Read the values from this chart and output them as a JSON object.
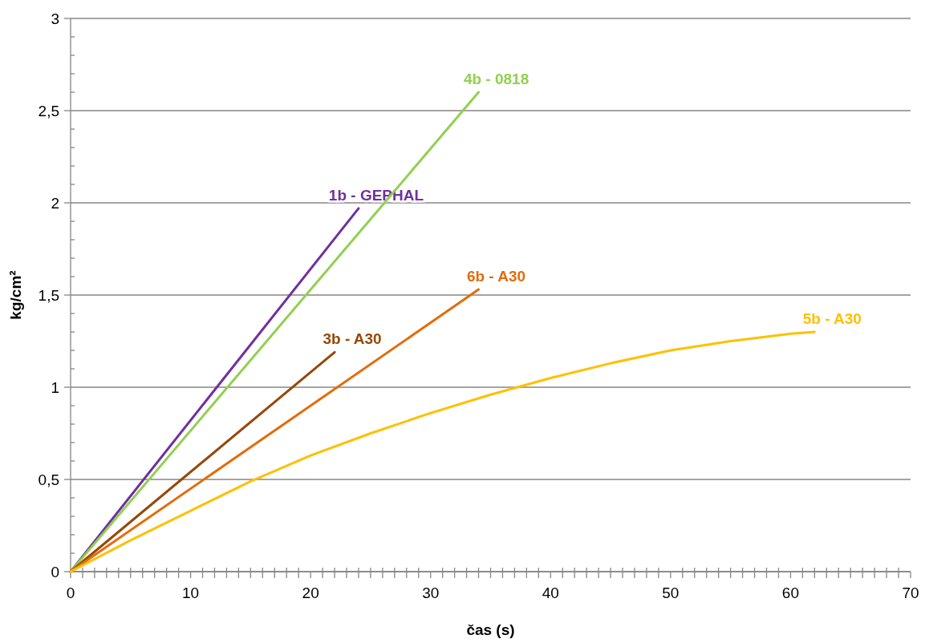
{
  "chart_data": {
    "type": "line",
    "xlabel": "čas (s)",
    "ylabel": "kg/cm²",
    "xlim": [
      0,
      70
    ],
    "ylim": [
      0,
      3
    ],
    "xticks": [
      0,
      {
        "value": 1,
        "label": null
      },
      {
        "value": 2,
        "label": null
      },
      {
        "value": 3,
        "label": null
      },
      {
        "value": 4,
        "label": null
      },
      {
        "value": 5,
        "label": null
      },
      {
        "value": 6,
        "label": null
      },
      {
        "value": 7,
        "label": null
      },
      {
        "value": 8,
        "label": null
      },
      {
        "value": 9,
        "label": null
      },
      10,
      {
        "value": 11,
        "label": null
      },
      {
        "value": 12,
        "label": null
      },
      {
        "value": 13,
        "label": null
      },
      {
        "value": 14,
        "label": null
      },
      {
        "value": 15,
        "label": null
      },
      {
        "value": 16,
        "label": null
      },
      {
        "value": 17,
        "label": null
      },
      {
        "value": 18,
        "label": null
      },
      {
        "value": 19,
        "label": null
      },
      20,
      {
        "value": 21,
        "label": null
      },
      {
        "value": 22,
        "label": null
      },
      {
        "value": 23,
        "label": null
      },
      {
        "value": 24,
        "label": null
      },
      {
        "value": 25,
        "label": null
      },
      {
        "value": 26,
        "label": null
      },
      {
        "value": 27,
        "label": null
      },
      {
        "value": 28,
        "label": null
      },
      {
        "value": 29,
        "label": null
      },
      30,
      {
        "value": 31,
        "label": null
      },
      {
        "value": 32,
        "label": null
      },
      {
        "value": 33,
        "label": null
      },
      {
        "value": 34,
        "label": null
      },
      {
        "value": 35,
        "label": null
      },
      {
        "value": 36,
        "label": null
      },
      {
        "value": 37,
        "label": null
      },
      {
        "value": 38,
        "label": null
      },
      {
        "value": 39,
        "label": null
      },
      40,
      {
        "value": 41,
        "label": null
      },
      {
        "value": 42,
        "label": null
      },
      {
        "value": 43,
        "label": null
      },
      {
        "value": 44,
        "label": null
      },
      {
        "value": 45,
        "label": null
      },
      {
        "value": 46,
        "label": null
      },
      {
        "value": 47,
        "label": null
      },
      {
        "value": 48,
        "label": null
      },
      {
        "value": 49,
        "label": null
      },
      50,
      {
        "value": 51,
        "label": null
      },
      {
        "value": 52,
        "label": null
      },
      {
        "value": 53,
        "label": null
      },
      {
        "value": 54,
        "label": null
      },
      {
        "value": 55,
        "label": null
      },
      {
        "value": 56,
        "label": null
      },
      {
        "value": 57,
        "label": null
      },
      {
        "value": 58,
        "label": null
      },
      {
        "value": 59,
        "label": null
      },
      60,
      {
        "value": 61,
        "label": null
      },
      {
        "value": 62,
        "label": null
      },
      {
        "value": 63,
        "label": null
      },
      {
        "value": 64,
        "label": null
      },
      {
        "value": 65,
        "label": null
      },
      {
        "value": 66,
        "label": null
      },
      {
        "value": 67,
        "label": null
      },
      {
        "value": 68,
        "label": null
      },
      {
        "value": 69,
        "label": null
      },
      70
    ],
    "yticks": [
      0,
      {
        "value": 0.1,
        "label": null
      },
      {
        "value": 0.2,
        "label": null
      },
      {
        "value": 0.3,
        "label": null
      },
      {
        "value": 0.4,
        "label": null
      },
      {
        "value": 0.5,
        "label": "0,5"
      },
      {
        "value": 0.6,
        "label": null
      },
      {
        "value": 0.7,
        "label": null
      },
      {
        "value": 0.8,
        "label": null
      },
      {
        "value": 0.9,
        "label": null
      },
      1,
      {
        "value": 1.1,
        "label": null
      },
      {
        "value": 1.2,
        "label": null
      },
      {
        "value": 1.3,
        "label": null
      },
      {
        "value": 1.4,
        "label": null
      },
      {
        "value": 1.5,
        "label": "1,5"
      },
      {
        "value": 1.6,
        "label": null
      },
      {
        "value": 1.7,
        "label": null
      },
      {
        "value": 1.8,
        "label": null
      },
      {
        "value": 1.9,
        "label": null
      },
      2,
      {
        "value": 2.1,
        "label": null
      },
      {
        "value": 2.2,
        "label": null
      },
      {
        "value": 2.3,
        "label": null
      },
      {
        "value": 2.4,
        "label": null
      },
      {
        "value": 2.5,
        "label": "2,5"
      },
      {
        "value": 2.6,
        "label": null
      },
      {
        "value": 2.7,
        "label": null
      },
      {
        "value": 2.8,
        "label": null
      },
      {
        "value": 2.9,
        "label": null
      },
      3
    ],
    "grid": "y",
    "marker": "none",
    "series": [
      {
        "name": "1b - GEPHAL",
        "color": "#7030a0",
        "x": [
          0,
          24
        ],
        "values": [
          0,
          1.97
        ]
      },
      {
        "name": "4b - 0818",
        "color": "#92d050",
        "x": [
          0,
          34
        ],
        "values": [
          0,
          2.6
        ]
      },
      {
        "name": "3b - A30",
        "color": "#974706",
        "x": [
          0,
          22
        ],
        "values": [
          0,
          1.19
        ]
      },
      {
        "name": "6b - A30",
        "color": "#e36c09",
        "x": [
          0,
          34
        ],
        "values": [
          0,
          1.53
        ]
      },
      {
        "name": "5b - A30",
        "color": "#ffc000",
        "x": [
          0,
          5,
          10,
          15,
          20,
          25,
          30,
          35,
          40,
          45,
          50,
          55,
          60,
          62
        ],
        "values": [
          0,
          0.17,
          0.33,
          0.49,
          0.63,
          0.75,
          0.86,
          0.96,
          1.05,
          1.13,
          1.2,
          1.25,
          1.29,
          1.3
        ]
      }
    ]
  }
}
